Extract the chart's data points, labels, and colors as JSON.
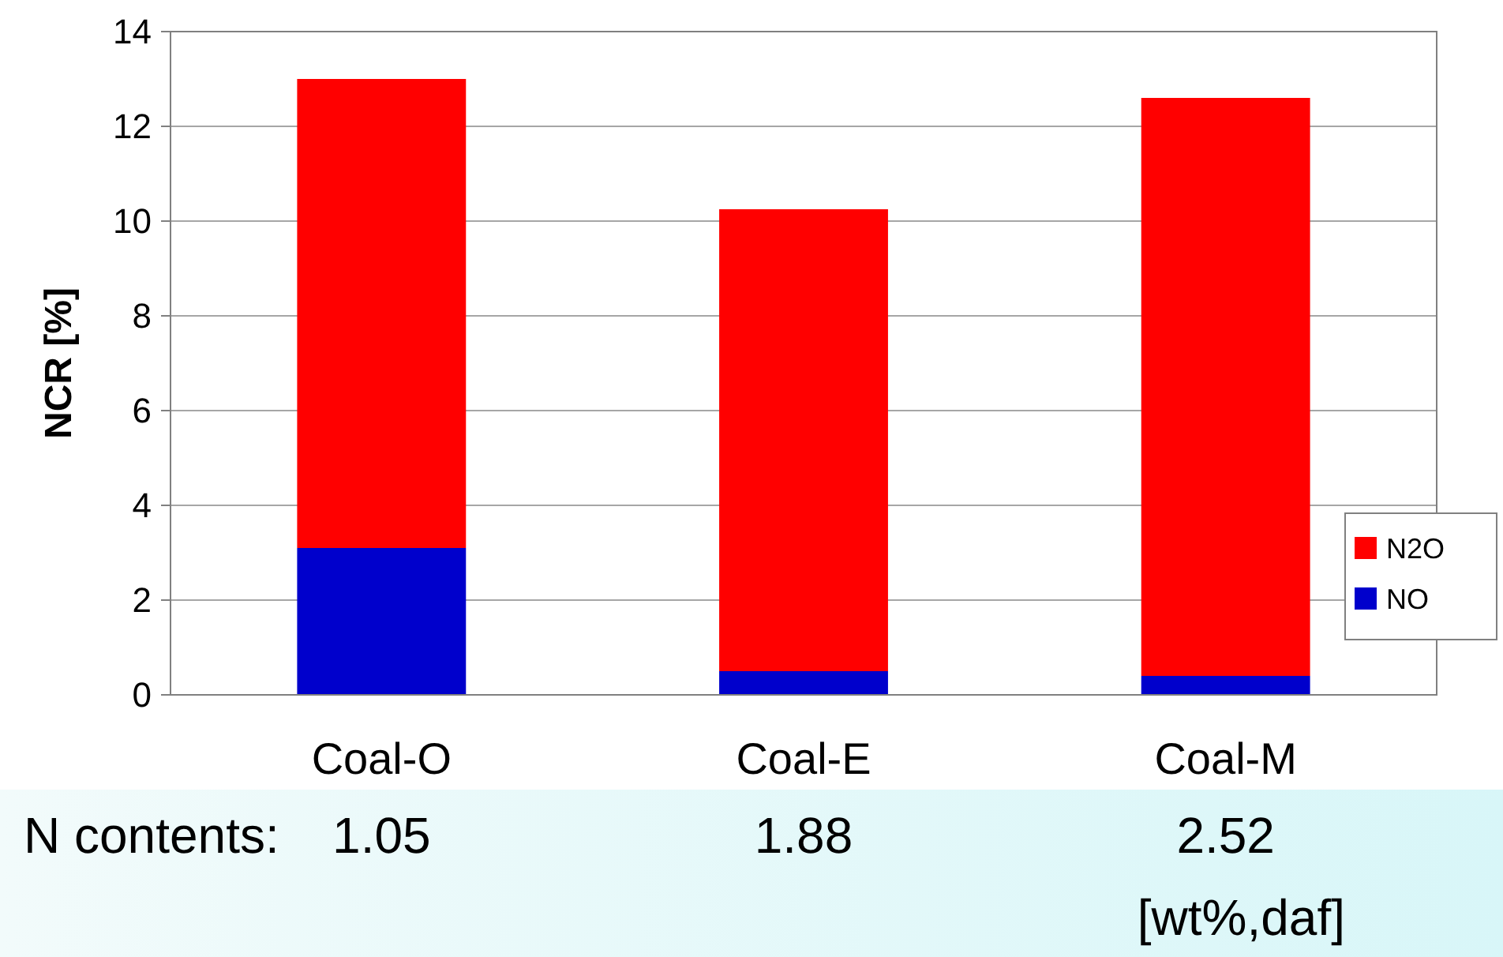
{
  "chart_data": {
    "type": "bar",
    "ylabel": "NCR [%]",
    "categories": [
      "Coal-O",
      "Coal-E",
      "Coal-M"
    ],
    "stacked": true,
    "series": [
      {
        "name": "NO",
        "color": "#0000cc",
        "values": [
          3.1,
          0.5,
          0.4
        ]
      },
      {
        "name": "N2O",
        "color": "#ff0000",
        "values": [
          9.9,
          9.75,
          12.2
        ]
      }
    ],
    "ylim": [
      0,
      14
    ],
    "yticks": [
      0,
      2,
      4,
      6,
      8,
      10,
      12,
      14
    ],
    "grid": "y",
    "legend": "right",
    "annotations": [
      "N contents:",
      "1.05",
      "1.88",
      "2.52",
      "[wt%,daf]"
    ]
  }
}
